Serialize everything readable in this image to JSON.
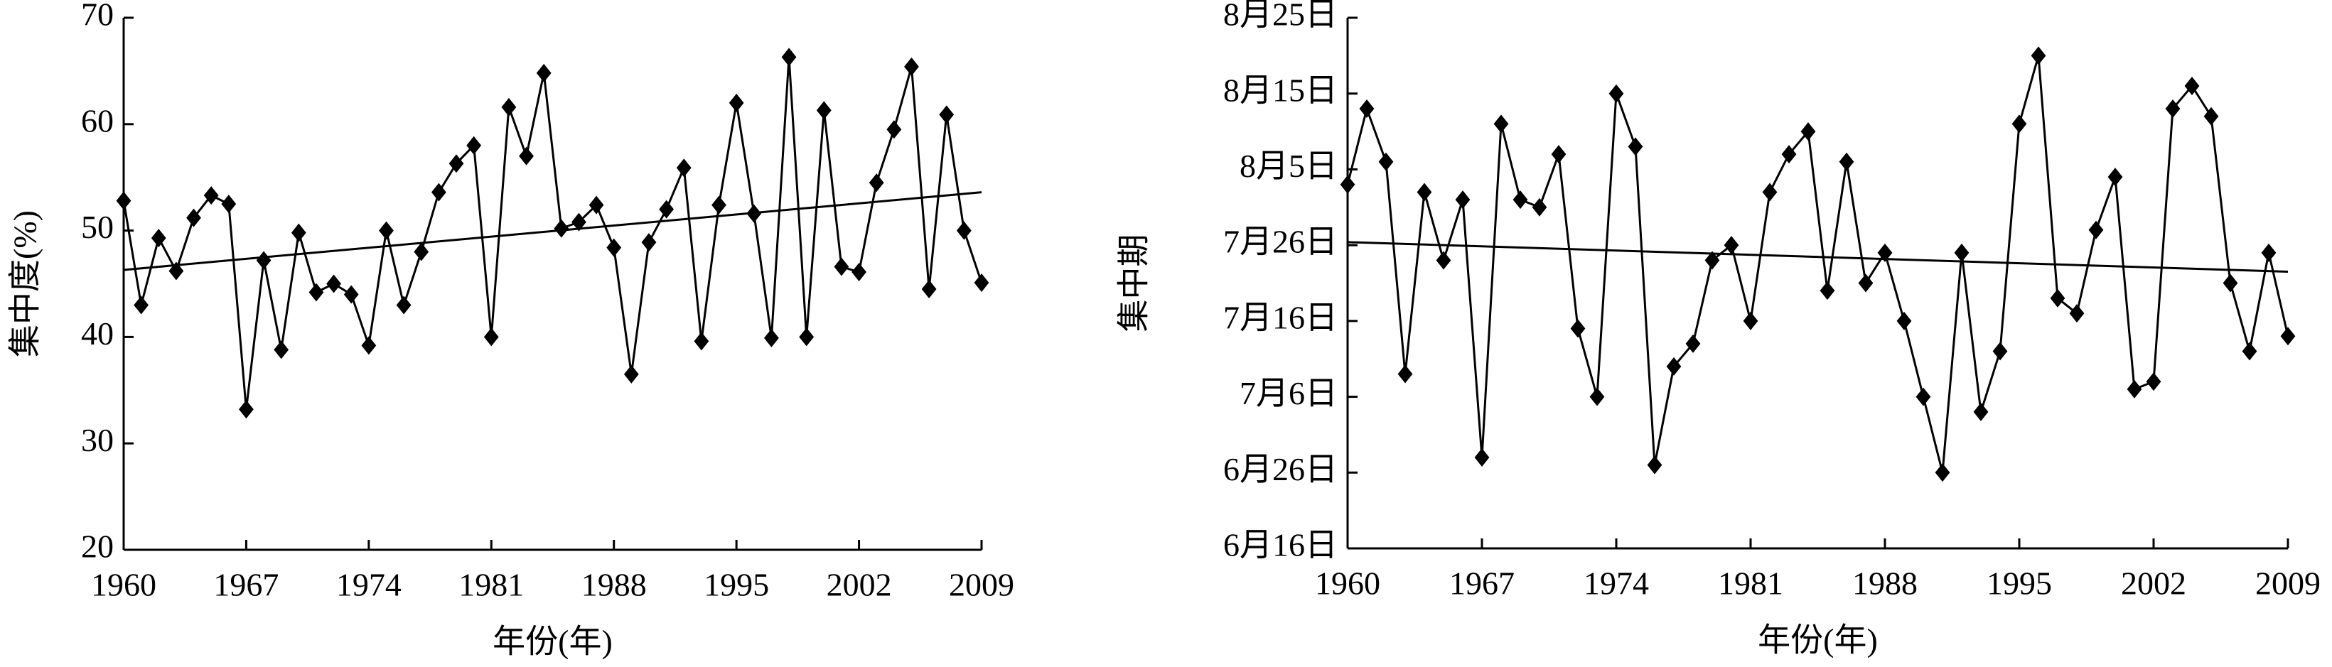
{
  "chart_data": [
    {
      "type": "line",
      "ylabel": "集中度(%)",
      "xlabel": "年份(年)",
      "x": [
        1960,
        1961,
        1962,
        1963,
        1964,
        1965,
        1966,
        1967,
        1968,
        1969,
        1970,
        1971,
        1972,
        1973,
        1974,
        1975,
        1976,
        1977,
        1978,
        1979,
        1980,
        1981,
        1982,
        1983,
        1984,
        1985,
        1986,
        1987,
        1988,
        1989,
        1990,
        1991,
        1992,
        1993,
        1994,
        1995,
        1996,
        1997,
        1998,
        1999,
        2000,
        2001,
        2002,
        2003,
        2004,
        2005,
        2006,
        2007,
        2008,
        2009
      ],
      "series": [
        {
          "color": "#000000",
          "values": [
            52.8,
            43,
            49.3,
            46.2,
            51.2,
            53.3,
            52.5,
            33.2,
            47.2,
            38.8,
            49.8,
            44.2,
            45,
            44,
            39.2,
            50,
            43,
            48,
            53.6,
            56.3,
            58,
            40,
            61.6,
            57,
            64.8,
            50.2,
            50.8,
            52.4,
            48.4,
            36.5,
            48.9,
            52,
            55.9,
            39.6,
            52.4,
            62,
            51.6,
            39.9,
            66.3,
            40,
            61.3,
            46.6,
            46.1,
            54.5,
            59.5,
            65.4,
            44.5,
            60.9,
            50,
            45.1
          ]
        }
      ],
      "trendline": {
        "x": [
          1960,
          2009
        ],
        "values": [
          46.3,
          53.6
        ]
      },
      "xlim": [
        1960,
        2009
      ],
      "xticks": [
        1960,
        1967,
        1974,
        1981,
        1988,
        1995,
        2002,
        2009
      ],
      "ylim": [
        20,
        70
      ],
      "yticks": [
        20,
        30,
        40,
        50,
        60,
        70
      ]
    },
    {
      "type": "line",
      "ylabel": "集中期",
      "xlabel": "年份(年)",
      "x": [
        1960,
        1961,
        1962,
        1963,
        1964,
        1965,
        1966,
        1967,
        1968,
        1969,
        1970,
        1971,
        1972,
        1973,
        1974,
        1975,
        1976,
        1977,
        1978,
        1979,
        1980,
        1981,
        1982,
        1983,
        1984,
        1985,
        1986,
        1987,
        1988,
        1989,
        1990,
        1991,
        1992,
        1993,
        1994,
        1995,
        1996,
        1997,
        1998,
        1999,
        2000,
        2001,
        2002,
        2003,
        2004,
        2005,
        2006,
        2007,
        2008,
        2009
      ],
      "series": [
        {
          "color": "#000000",
          "values": [
            215,
            225,
            218,
            190,
            214,
            205,
            213,
            179,
            223,
            213,
            212,
            219,
            196,
            187,
            227,
            220,
            178,
            191,
            194,
            205,
            207,
            197,
            214,
            219,
            222,
            201,
            218,
            202,
            206,
            197,
            187,
            177,
            206,
            185,
            193,
            223,
            232,
            200,
            198,
            209,
            216,
            188,
            189,
            225,
            228,
            224,
            202,
            193,
            206,
            195
          ]
        }
      ],
      "trendline": {
        "x": [
          1960,
          2009
        ],
        "values": [
          207.4,
          203.5
        ]
      },
      "xlim": [
        1960,
        2009
      ],
      "xticks": [
        1960,
        1967,
        1974,
        1981,
        1988,
        1995,
        2002,
        2009
      ],
      "ylim": [
        167,
        237
      ],
      "yticks": [
        {
          "value": 167,
          "label": "6月16日"
        },
        {
          "value": 177,
          "label": "6月26日"
        },
        {
          "value": 187,
          "label": "7月6日"
        },
        {
          "value": 197,
          "label": "7月16日"
        },
        {
          "value": 207,
          "label": "7月26日"
        },
        {
          "value": 217,
          "label": "8月5日"
        },
        {
          "value": 227,
          "label": "8月15日"
        },
        {
          "value": 237,
          "label": "8月25日"
        }
      ]
    }
  ]
}
